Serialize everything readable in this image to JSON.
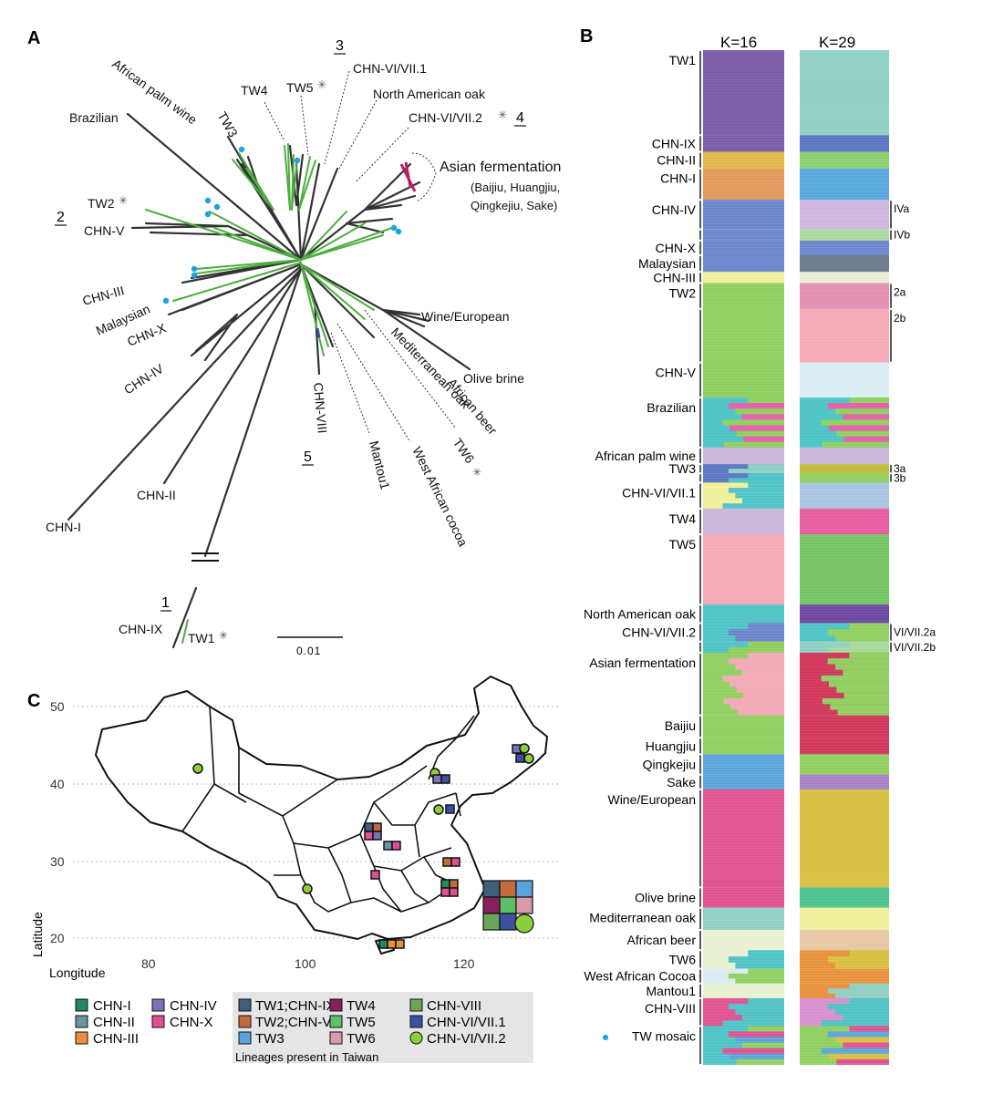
{
  "panels": {
    "a": "A",
    "b": "B",
    "c": "C"
  },
  "tree": {
    "clade_numbers": [
      "1",
      "2",
      "3",
      "4",
      "5"
    ],
    "labels": [
      "African palm wine",
      "Brazilian",
      "TW3",
      "TW4",
      "TW5",
      "CHN-VI/VII.1",
      "North American oak",
      "CHN-VI/VII.2",
      "Asian fermentation",
      "(Baijiu, Huangjiu,",
      "Qingkejiu, Sake)",
      "TW2",
      "CHN-V",
      "CHN-III",
      "Malaysian",
      "CHN-X",
      "CHN-IV",
      "Wine/European",
      "Mediterranean oak",
      "Olive brine",
      "African beer",
      "TW6",
      "West African cocoa",
      "Mantou1",
      "CHN-VIII",
      "CHN-II",
      "CHN-I",
      "CHN-IX",
      "TW1"
    ],
    "star": "✳",
    "scale_label": "0.01",
    "colors": {
      "taiwan": "#4caf3f",
      "other": "#333333",
      "tw_mosaic_dot": "#1da1e2",
      "asian": "#c0186c"
    }
  },
  "structure": {
    "k_labels": [
      "K=16",
      "K=29"
    ],
    "groups": [
      {
        "label": "TW1",
        "sub": "",
        "w": 92,
        "k16": [
          "#7a5ba8"
        ],
        "k29": [
          "#8fd0c4"
        ]
      },
      {
        "label": "CHN-IX",
        "sub": "",
        "w": 18,
        "k16": [
          "#7a5ba8"
        ],
        "k29": [
          "#5b76c2"
        ]
      },
      {
        "label": "CHN-II",
        "sub": "",
        "w": 18,
        "k16": [
          "#e2b84a"
        ],
        "k29": [
          "#8ccf6e"
        ]
      },
      {
        "label": "CHN-I",
        "sub": "",
        "w": 34,
        "k16": [
          "#e29a5a"
        ],
        "k29": [
          "#58a9dd"
        ]
      },
      {
        "label": "CHN-IV",
        "sub": "IVa",
        "w": 32,
        "k16": [
          "#6b86cc"
        ],
        "k29": [
          "#cdb6de"
        ]
      },
      {
        "label": "",
        "sub": "IVb",
        "w": 12,
        "k16": [
          "#6b86cc"
        ],
        "k29": [
          "#a8d89a"
        ]
      },
      {
        "label": "CHN-X",
        "sub": "",
        "w": 16,
        "k16": [
          "#6b86cc"
        ],
        "k29": [
          "#6b86cc"
        ]
      },
      {
        "label": "Malaysian",
        "sub": "",
        "w": 18,
        "k16": [
          "#6b86cc"
        ],
        "k29": [
          "#6d7a8c"
        ]
      },
      {
        "label": "CHN-III",
        "sub": "",
        "w": 12,
        "k16": [
          "#f0f09a"
        ],
        "k29": [
          "#e8efd8"
        ]
      },
      {
        "label": "TW2",
        "sub": "2a",
        "w": 28,
        "k16": [
          "#8fcf5e"
        ],
        "k29": [
          "#e38eb0"
        ]
      },
      {
        "label": "",
        "sub": "2b",
        "w": 58,
        "k16": [
          "#8fcf5e"
        ],
        "k29": [
          "#f4a9b6"
        ]
      },
      {
        "label": "CHN-V",
        "sub": "",
        "w": 38,
        "k16": [
          "#8fcf5e"
        ],
        "k29": [
          "#d9eef3"
        ]
      },
      {
        "label": "Brazilian",
        "sub": "",
        "w": 54,
        "k16": [
          "#4cc3c6",
          "#8fcf5e",
          "#e95ea8"
        ],
        "k29": [
          "#4cc3c6",
          "#8fcf5e",
          "#e95ea8"
        ]
      },
      {
        "label": "African palm wine",
        "sub": "",
        "w": 18,
        "k16": [
          "#c9b6d8"
        ],
        "k29": [
          "#c9b6d8"
        ]
      },
      {
        "label": "TW3",
        "sub": "3a",
        "w": 10,
        "k16": [
          "#5b76c2",
          "#8fd0c4"
        ],
        "k29": [
          "#bfbd3a"
        ]
      },
      {
        "label": "",
        "sub": "3b",
        "w": 10,
        "k16": [
          "#5b76c2",
          "#4cc3c6"
        ],
        "k29": [
          "#8fcf5e"
        ]
      },
      {
        "label": "CHN-VI/VII.1",
        "sub": "",
        "w": 28,
        "k16": [
          "#f0f09a",
          "#4cc3c6"
        ],
        "k29": [
          "#a8c4e0"
        ]
      },
      {
        "label": "TW4",
        "sub": "",
        "w": 28,
        "k16": [
          "#c9b6d8"
        ],
        "k29": [
          "#e85aa0"
        ]
      },
      {
        "label": "TW5",
        "sub": "",
        "w": 76,
        "k16": [
          "#f4a9b6"
        ],
        "k29": [
          "#74c462"
        ]
      },
      {
        "label": "North American oak",
        "sub": "",
        "w": 20,
        "k16": [
          "#4cc3c6"
        ],
        "k29": [
          "#6c46a0"
        ]
      },
      {
        "label": "CHN-VI/VII.2",
        "sub": "VI/VII.2a",
        "w": 20,
        "k16": [
          "#4cc3c6",
          "#6b86cc"
        ],
        "k29": [
          "#4cc3c6",
          "#8fcf5e"
        ]
      },
      {
        "label": "",
        "sub": "VI/VII.2b",
        "w": 12,
        "k16": [
          "#4cc3c6",
          "#8fcf5e"
        ],
        "k29": [
          "#8fd0c4",
          "#a8d89a"
        ]
      },
      {
        "label": "Asian fermentation",
        "sub": "",
        "w": 68,
        "k16": [
          "#8fcf5e",
          "#f4a9b6"
        ],
        "k29": [
          "#d0355a",
          "#8fcf5e"
        ]
      },
      {
        "label": "Baijiu",
        "sub": "",
        "w": 24,
        "k16": [
          "#8fcf5e"
        ],
        "k29": [
          "#d0355a"
        ]
      },
      {
        "label": "Huangjiu",
        "sub": "",
        "w": 18,
        "k16": [
          "#8fcf5e"
        ],
        "k29": [
          "#d0355a"
        ]
      },
      {
        "label": "Qingkejiu",
        "sub": "",
        "w": 22,
        "k16": [
          "#5aa4dc"
        ],
        "k29": [
          "#8fcf5e"
        ]
      },
      {
        "label": "Sake",
        "sub": "",
        "w": 16,
        "k16": [
          "#5aa4dc"
        ],
        "k29": [
          "#a67fc7"
        ]
      },
      {
        "label": "Wine/European",
        "sub": "",
        "w": 106,
        "k16": [
          "#e0508f"
        ],
        "k29": [
          "#d8c040"
        ]
      },
      {
        "label": "Olive brine",
        "sub": "",
        "w": 22,
        "k16": [
          "#e0508f"
        ],
        "k29": [
          "#4cc38f"
        ]
      },
      {
        "label": "Mediterranean oak",
        "sub": "",
        "w": 24,
        "k16": [
          "#8fd0c4"
        ],
        "k29": [
          "#f0f09a"
        ]
      },
      {
        "label": "African beer",
        "sub": "",
        "w": 22,
        "k16": [
          "#e9f1d2"
        ],
        "k29": [
          "#e7c7a4"
        ]
      },
      {
        "label": "TW6",
        "sub": "",
        "w": 20,
        "k16": [
          "#e9f1d2",
          "#4cc3c6"
        ],
        "k29": [
          "#e8913a",
          "#d8c040"
        ]
      },
      {
        "label": "West African Cocoa",
        "sub": "",
        "w": 16,
        "k16": [
          "#d9ecf0",
          "#8fcf5e"
        ],
        "k29": [
          "#e8913a"
        ]
      },
      {
        "label": "Mantou1",
        "sub": "",
        "w": 16,
        "k16": [
          "#e9f1d2"
        ],
        "k29": [
          "#e8913a",
          "#8fd0c4"
        ]
      },
      {
        "label": "CHN-VIII",
        "sub": "",
        "w": 30,
        "k16": [
          "#e0508f",
          "#4cc3c6"
        ],
        "k29": [
          "#d98ed0",
          "#4cc3c6"
        ]
      },
      {
        "label": "TW mosaic",
        "sub": "",
        "w": 42,
        "k16": [
          "#4cc3c6",
          "#8fcf5e",
          "#e0508f",
          "#5aa4dc"
        ],
        "k29": [
          "#8fcf5e",
          "#e0508f",
          "#5aa4dc",
          "#d8c040"
        ]
      }
    ]
  },
  "map": {
    "axis": {
      "ylabel": "Latitude",
      "xlabel": "Longitude",
      "lat_ticks": [
        "50",
        "40",
        "30",
        "20"
      ],
      "lon_ticks": [
        "80",
        "100",
        "120"
      ]
    },
    "legend": {
      "china": [
        {
          "label": "CHN-I",
          "color": "#1f8a5a"
        },
        {
          "label": "CHN-II",
          "color": "#6a93a6"
        },
        {
          "label": "CHN-III",
          "color": "#e8913a"
        },
        {
          "label": "CHN-IV",
          "color": "#7b73b8"
        },
        {
          "label": "CHN-X",
          "color": "#e0508f"
        }
      ],
      "taiwan": [
        {
          "label": "TW1;CHN-IX",
          "color": "#3f5e7b",
          "shape": "square"
        },
        {
          "label": "TW2;CHN-V",
          "color": "#c46a3e",
          "shape": "square"
        },
        {
          "label": "TW3",
          "color": "#5aa4dc",
          "shape": "square"
        },
        {
          "label": "TW4",
          "color": "#8a1f5e",
          "shape": "square"
        },
        {
          "label": "TW5",
          "color": "#5cc06a",
          "shape": "square"
        },
        {
          "label": "TW6",
          "color": "#d99aaa",
          "shape": "square"
        },
        {
          "label": "CHN-VIII",
          "color": "#6aa655",
          "shape": "square"
        },
        {
          "label": "CHN-VI/VII.1",
          "color": "#3c4fa0",
          "shape": "square"
        },
        {
          "label": "CHN-VI/VII.2",
          "color": "#8ccf3c",
          "shape": "circle"
        }
      ],
      "caption": "Lineages present in Taiwan"
    }
  }
}
